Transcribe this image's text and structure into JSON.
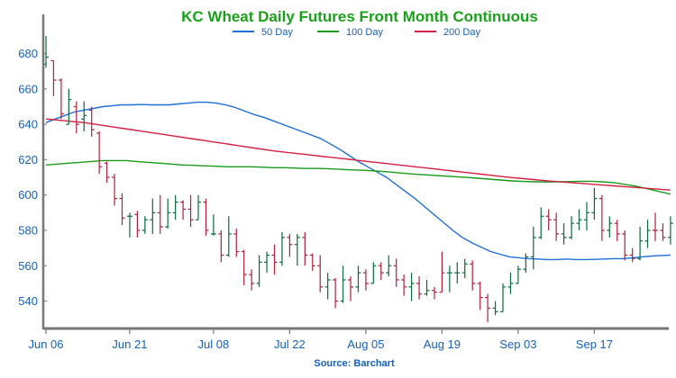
{
  "chart_data": {
    "type": "ohlc",
    "title": "KC Wheat Daily Futures Front Month Continuous",
    "source": "Source: Barchart",
    "ylim": [
      525,
      692
    ],
    "yticks": [
      540,
      560,
      580,
      600,
      620,
      640,
      660,
      680
    ],
    "xlabel": "",
    "ylabel": "",
    "grid": false,
    "legend_position": "top-center",
    "xtick_labels": [
      {
        "label": "Jun 06",
        "index": 0
      },
      {
        "label": "Jun 21",
        "index": 11
      },
      {
        "label": "Jul 08",
        "index": 22
      },
      {
        "label": "Jul 22",
        "index": 32
      },
      {
        "label": "Aug 05",
        "index": 42
      },
      {
        "label": "Aug 19",
        "index": 52
      },
      {
        "label": "Sep 03",
        "index": 62
      },
      {
        "label": "Sep 17",
        "index": 72
      }
    ],
    "colors": {
      "title": "#1aa11a",
      "up": "#0b6b3a",
      "down": "#b0203a",
      "axis": "#777777",
      "ma50": "#1f6fd6",
      "ma100": "#1a9a1a",
      "ma200": "#d21f45"
    },
    "legend": [
      {
        "name": "50 Day",
        "color": "#1f6fd6"
      },
      {
        "name": "100 Day",
        "color": "#1a9a1a"
      },
      {
        "name": "200 Day",
        "color": "#d21f45"
      }
    ],
    "bars": [
      {
        "o": 674,
        "h": 690,
        "l": 672,
        "c": 678,
        "dir": "up"
      },
      {
        "o": 676,
        "h": 676,
        "l": 656,
        "c": 665,
        "dir": "down"
      },
      {
        "o": 665,
        "h": 666,
        "l": 643,
        "c": 646,
        "dir": "down"
      },
      {
        "o": 640,
        "h": 660,
        "l": 640,
        "c": 654,
        "dir": "up"
      },
      {
        "o": 650,
        "h": 653,
        "l": 635,
        "c": 640,
        "dir": "down"
      },
      {
        "o": 643,
        "h": 653,
        "l": 636,
        "c": 645,
        "dir": "up"
      },
      {
        "o": 648,
        "h": 650,
        "l": 633,
        "c": 637,
        "dir": "down"
      },
      {
        "o": 635,
        "h": 636,
        "l": 612,
        "c": 616,
        "dir": "down"
      },
      {
        "o": 618,
        "h": 619,
        "l": 607,
        "c": 610,
        "dir": "down"
      },
      {
        "o": 610,
        "h": 612,
        "l": 594,
        "c": 598,
        "dir": "down"
      },
      {
        "o": 598,
        "h": 601,
        "l": 583,
        "c": 587,
        "dir": "down"
      },
      {
        "o": 588,
        "h": 590,
        "l": 576,
        "c": 588,
        "dir": "up"
      },
      {
        "o": 589,
        "h": 591,
        "l": 576,
        "c": 580,
        "dir": "down"
      },
      {
        "o": 580,
        "h": 588,
        "l": 578,
        "c": 586,
        "dir": "up"
      },
      {
        "o": 586,
        "h": 598,
        "l": 578,
        "c": 590,
        "dir": "up"
      },
      {
        "o": 590,
        "h": 600,
        "l": 578,
        "c": 582,
        "dir": "down"
      },
      {
        "o": 582,
        "h": 598,
        "l": 581,
        "c": 590,
        "dir": "up"
      },
      {
        "o": 590,
        "h": 600,
        "l": 586,
        "c": 596,
        "dir": "up"
      },
      {
        "o": 596,
        "h": 597,
        "l": 586,
        "c": 592,
        "dir": "down"
      },
      {
        "o": 592,
        "h": 600,
        "l": 582,
        "c": 586,
        "dir": "down"
      },
      {
        "o": 586,
        "h": 600,
        "l": 586,
        "c": 596,
        "dir": "up"
      },
      {
        "o": 596,
        "h": 598,
        "l": 577,
        "c": 580,
        "dir": "down"
      },
      {
        "o": 578,
        "h": 589,
        "l": 577,
        "c": 578,
        "dir": "up"
      },
      {
        "o": 578,
        "h": 580,
        "l": 562,
        "c": 566,
        "dir": "down"
      },
      {
        "o": 566,
        "h": 588,
        "l": 565,
        "c": 578,
        "dir": "up"
      },
      {
        "o": 578,
        "h": 581,
        "l": 565,
        "c": 568,
        "dir": "down"
      },
      {
        "o": 568,
        "h": 569,
        "l": 549,
        "c": 555,
        "dir": "down"
      },
      {
        "o": 555,
        "h": 558,
        "l": 546,
        "c": 550,
        "dir": "down"
      },
      {
        "o": 550,
        "h": 566,
        "l": 548,
        "c": 562,
        "dir": "up"
      },
      {
        "o": 562,
        "h": 568,
        "l": 556,
        "c": 566,
        "dir": "up"
      },
      {
        "o": 566,
        "h": 572,
        "l": 555,
        "c": 562,
        "dir": "down"
      },
      {
        "o": 562,
        "h": 579,
        "l": 560,
        "c": 576,
        "dir": "up"
      },
      {
        "o": 576,
        "h": 578,
        "l": 565,
        "c": 572,
        "dir": "down"
      },
      {
        "o": 572,
        "h": 578,
        "l": 560,
        "c": 576,
        "dir": "up"
      },
      {
        "o": 576,
        "h": 579,
        "l": 560,
        "c": 566,
        "dir": "down"
      },
      {
        "o": 566,
        "h": 567,
        "l": 557,
        "c": 560,
        "dir": "down"
      },
      {
        "o": 560,
        "h": 566,
        "l": 545,
        "c": 548,
        "dir": "down"
      },
      {
        "o": 548,
        "h": 556,
        "l": 541,
        "c": 552,
        "dir": "up"
      },
      {
        "o": 552,
        "h": 553,
        "l": 536,
        "c": 540,
        "dir": "down"
      },
      {
        "o": 540,
        "h": 560,
        "l": 539,
        "c": 552,
        "dir": "up"
      },
      {
        "o": 552,
        "h": 554,
        "l": 540,
        "c": 548,
        "dir": "down"
      },
      {
        "o": 548,
        "h": 560,
        "l": 545,
        "c": 556,
        "dir": "up"
      },
      {
        "o": 556,
        "h": 558,
        "l": 546,
        "c": 550,
        "dir": "down"
      },
      {
        "o": 550,
        "h": 562,
        "l": 550,
        "c": 560,
        "dir": "up"
      },
      {
        "o": 560,
        "h": 562,
        "l": 552,
        "c": 556,
        "dir": "down"
      },
      {
        "o": 556,
        "h": 566,
        "l": 554,
        "c": 560,
        "dir": "up"
      },
      {
        "o": 560,
        "h": 564,
        "l": 548,
        "c": 552,
        "dir": "down"
      },
      {
        "o": 552,
        "h": 555,
        "l": 543,
        "c": 548,
        "dir": "down"
      },
      {
        "o": 548,
        "h": 556,
        "l": 540,
        "c": 550,
        "dir": "up"
      },
      {
        "o": 550,
        "h": 554,
        "l": 541,
        "c": 544,
        "dir": "down"
      },
      {
        "o": 544,
        "h": 552,
        "l": 543,
        "c": 546,
        "dir": "up"
      },
      {
        "o": 546,
        "h": 548,
        "l": 541,
        "c": 545,
        "dir": "down"
      },
      {
        "o": 545,
        "h": 568,
        "l": 545,
        "c": 556,
        "dir": "down"
      },
      {
        "o": 556,
        "h": 560,
        "l": 545,
        "c": 556,
        "dir": "up"
      },
      {
        "o": 556,
        "h": 562,
        "l": 550,
        "c": 556,
        "dir": "up"
      },
      {
        "o": 556,
        "h": 564,
        "l": 553,
        "c": 561,
        "dir": "up"
      },
      {
        "o": 561,
        "h": 563,
        "l": 546,
        "c": 550,
        "dir": "down"
      },
      {
        "o": 550,
        "h": 551,
        "l": 535,
        "c": 542,
        "dir": "down"
      },
      {
        "o": 542,
        "h": 544,
        "l": 528,
        "c": 536,
        "dir": "down"
      },
      {
        "o": 536,
        "h": 540,
        "l": 532,
        "c": 534,
        "dir": "up"
      },
      {
        "o": 534,
        "h": 550,
        "l": 534,
        "c": 548,
        "dir": "up"
      },
      {
        "o": 548,
        "h": 556,
        "l": 544,
        "c": 550,
        "dir": "up"
      },
      {
        "o": 550,
        "h": 560,
        "l": 550,
        "c": 558,
        "dir": "up"
      },
      {
        "o": 558,
        "h": 567,
        "l": 556,
        "c": 565,
        "dir": "up"
      },
      {
        "o": 565,
        "h": 582,
        "l": 558,
        "c": 576,
        "dir": "up"
      },
      {
        "o": 576,
        "h": 593,
        "l": 575,
        "c": 588,
        "dir": "up"
      },
      {
        "o": 588,
        "h": 592,
        "l": 580,
        "c": 586,
        "dir": "down"
      },
      {
        "o": 586,
        "h": 590,
        "l": 574,
        "c": 578,
        "dir": "down"
      },
      {
        "o": 578,
        "h": 584,
        "l": 572,
        "c": 576,
        "dir": "up"
      },
      {
        "o": 576,
        "h": 588,
        "l": 575,
        "c": 584,
        "dir": "up"
      },
      {
        "o": 584,
        "h": 592,
        "l": 580,
        "c": 586,
        "dir": "up"
      },
      {
        "o": 586,
        "h": 596,
        "l": 580,
        "c": 590,
        "dir": "up"
      },
      {
        "o": 590,
        "h": 604,
        "l": 586,
        "c": 598,
        "dir": "up"
      },
      {
        "o": 598,
        "h": 600,
        "l": 574,
        "c": 580,
        "dir": "down"
      },
      {
        "o": 580,
        "h": 588,
        "l": 576,
        "c": 584,
        "dir": "up"
      },
      {
        "o": 584,
        "h": 586,
        "l": 574,
        "c": 578,
        "dir": "down"
      },
      {
        "o": 578,
        "h": 580,
        "l": 563,
        "c": 566,
        "dir": "down"
      },
      {
        "o": 566,
        "h": 570,
        "l": 562,
        "c": 564,
        "dir": "down"
      },
      {
        "o": 564,
        "h": 582,
        "l": 563,
        "c": 574,
        "dir": "up"
      },
      {
        "o": 574,
        "h": 586,
        "l": 570,
        "c": 580,
        "dir": "up"
      },
      {
        "o": 580,
        "h": 590,
        "l": 574,
        "c": 580,
        "dir": "down"
      },
      {
        "o": 580,
        "h": 584,
        "l": 574,
        "c": 576,
        "dir": "down"
      },
      {
        "o": 576,
        "h": 588,
        "l": 572,
        "c": 584,
        "dir": "up"
      }
    ],
    "moving_averages": [
      {
        "name": "50 Day",
        "values": [
          641,
          643,
          645,
          647,
          648,
          649,
          650,
          650.5,
          651,
          651,
          651.2,
          651,
          651,
          651,
          651.5,
          652,
          652.5,
          652.5,
          652,
          651,
          649.5,
          647.5,
          645.5,
          644,
          642,
          640,
          638,
          636,
          634,
          632,
          629,
          626,
          622.5,
          619,
          616,
          613,
          610,
          606,
          602,
          598,
          593.5,
          589,
          584.5,
          580,
          576,
          573,
          570.5,
          568,
          566.5,
          565,
          564.5,
          564,
          563.8,
          563.5,
          563.5,
          563.8,
          563.5,
          563.5,
          563.6,
          563.8,
          564,
          564,
          564.5,
          565,
          565.5,
          565.8,
          566
        ]
      },
      {
        "name": "100 Day",
        "values": [
          617,
          617.5,
          618,
          618.5,
          619,
          619.5,
          619.5,
          619.5,
          619,
          618.5,
          618,
          617.5,
          617,
          616.8,
          616.5,
          616.3,
          616,
          616,
          616,
          615.8,
          615.5,
          615.5,
          615.2,
          615,
          615,
          614.8,
          614.5,
          614.2,
          614,
          613.6,
          613.2,
          612.6,
          612,
          611.6,
          611.2,
          610.8,
          610.4,
          610,
          609.5,
          609,
          608.5,
          608,
          607.7,
          607.5,
          607.4,
          607.5,
          607.6,
          607.8,
          607.8,
          607.5,
          607,
          606,
          605,
          603.5,
          602,
          600.5
        ]
      },
      {
        "name": "200 Day",
        "values": [
          643,
          642.5,
          642,
          641.5,
          641,
          640.2,
          639.4,
          638.6,
          637.8,
          637,
          636.2,
          635.4,
          634.6,
          633.8,
          633,
          632.2,
          631.4,
          630.6,
          629.8,
          629,
          628.2,
          627.4,
          626.6,
          625.8,
          625,
          624.4,
          623.8,
          623.2,
          622.6,
          622,
          621.4,
          620.8,
          620.2,
          619.6,
          619,
          618.4,
          617.8,
          617.2,
          616.6,
          616,
          615.4,
          614.8,
          614.2,
          613.6,
          613,
          612.4,
          611.8,
          611.2,
          610.6,
          610,
          609.5,
          609,
          608.5,
          608,
          607.6,
          607.2,
          606.8,
          606.4,
          606,
          605.6,
          605.2,
          604.8,
          604.4,
          604,
          603.6,
          603.2,
          602.8
        ]
      }
    ]
  }
}
